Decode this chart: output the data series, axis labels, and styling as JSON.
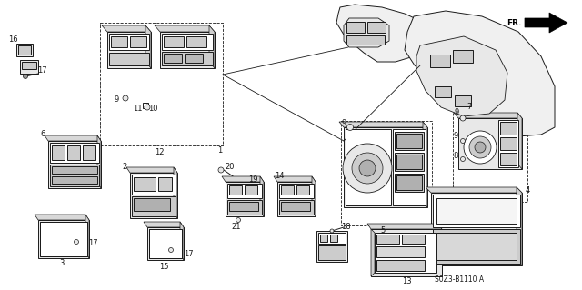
{
  "bg_color": "#ffffff",
  "line_color": "#1a1a1a",
  "gray_fill": "#e8e8e8",
  "mid_gray": "#cccccc",
  "dark_gray": "#999999",
  "diagram_code": "S0Z3-B1110 A",
  "fr_text": "FR.",
  "label_fontsize": 6.0,
  "lw_main": 0.7,
  "lw_thick": 1.2
}
